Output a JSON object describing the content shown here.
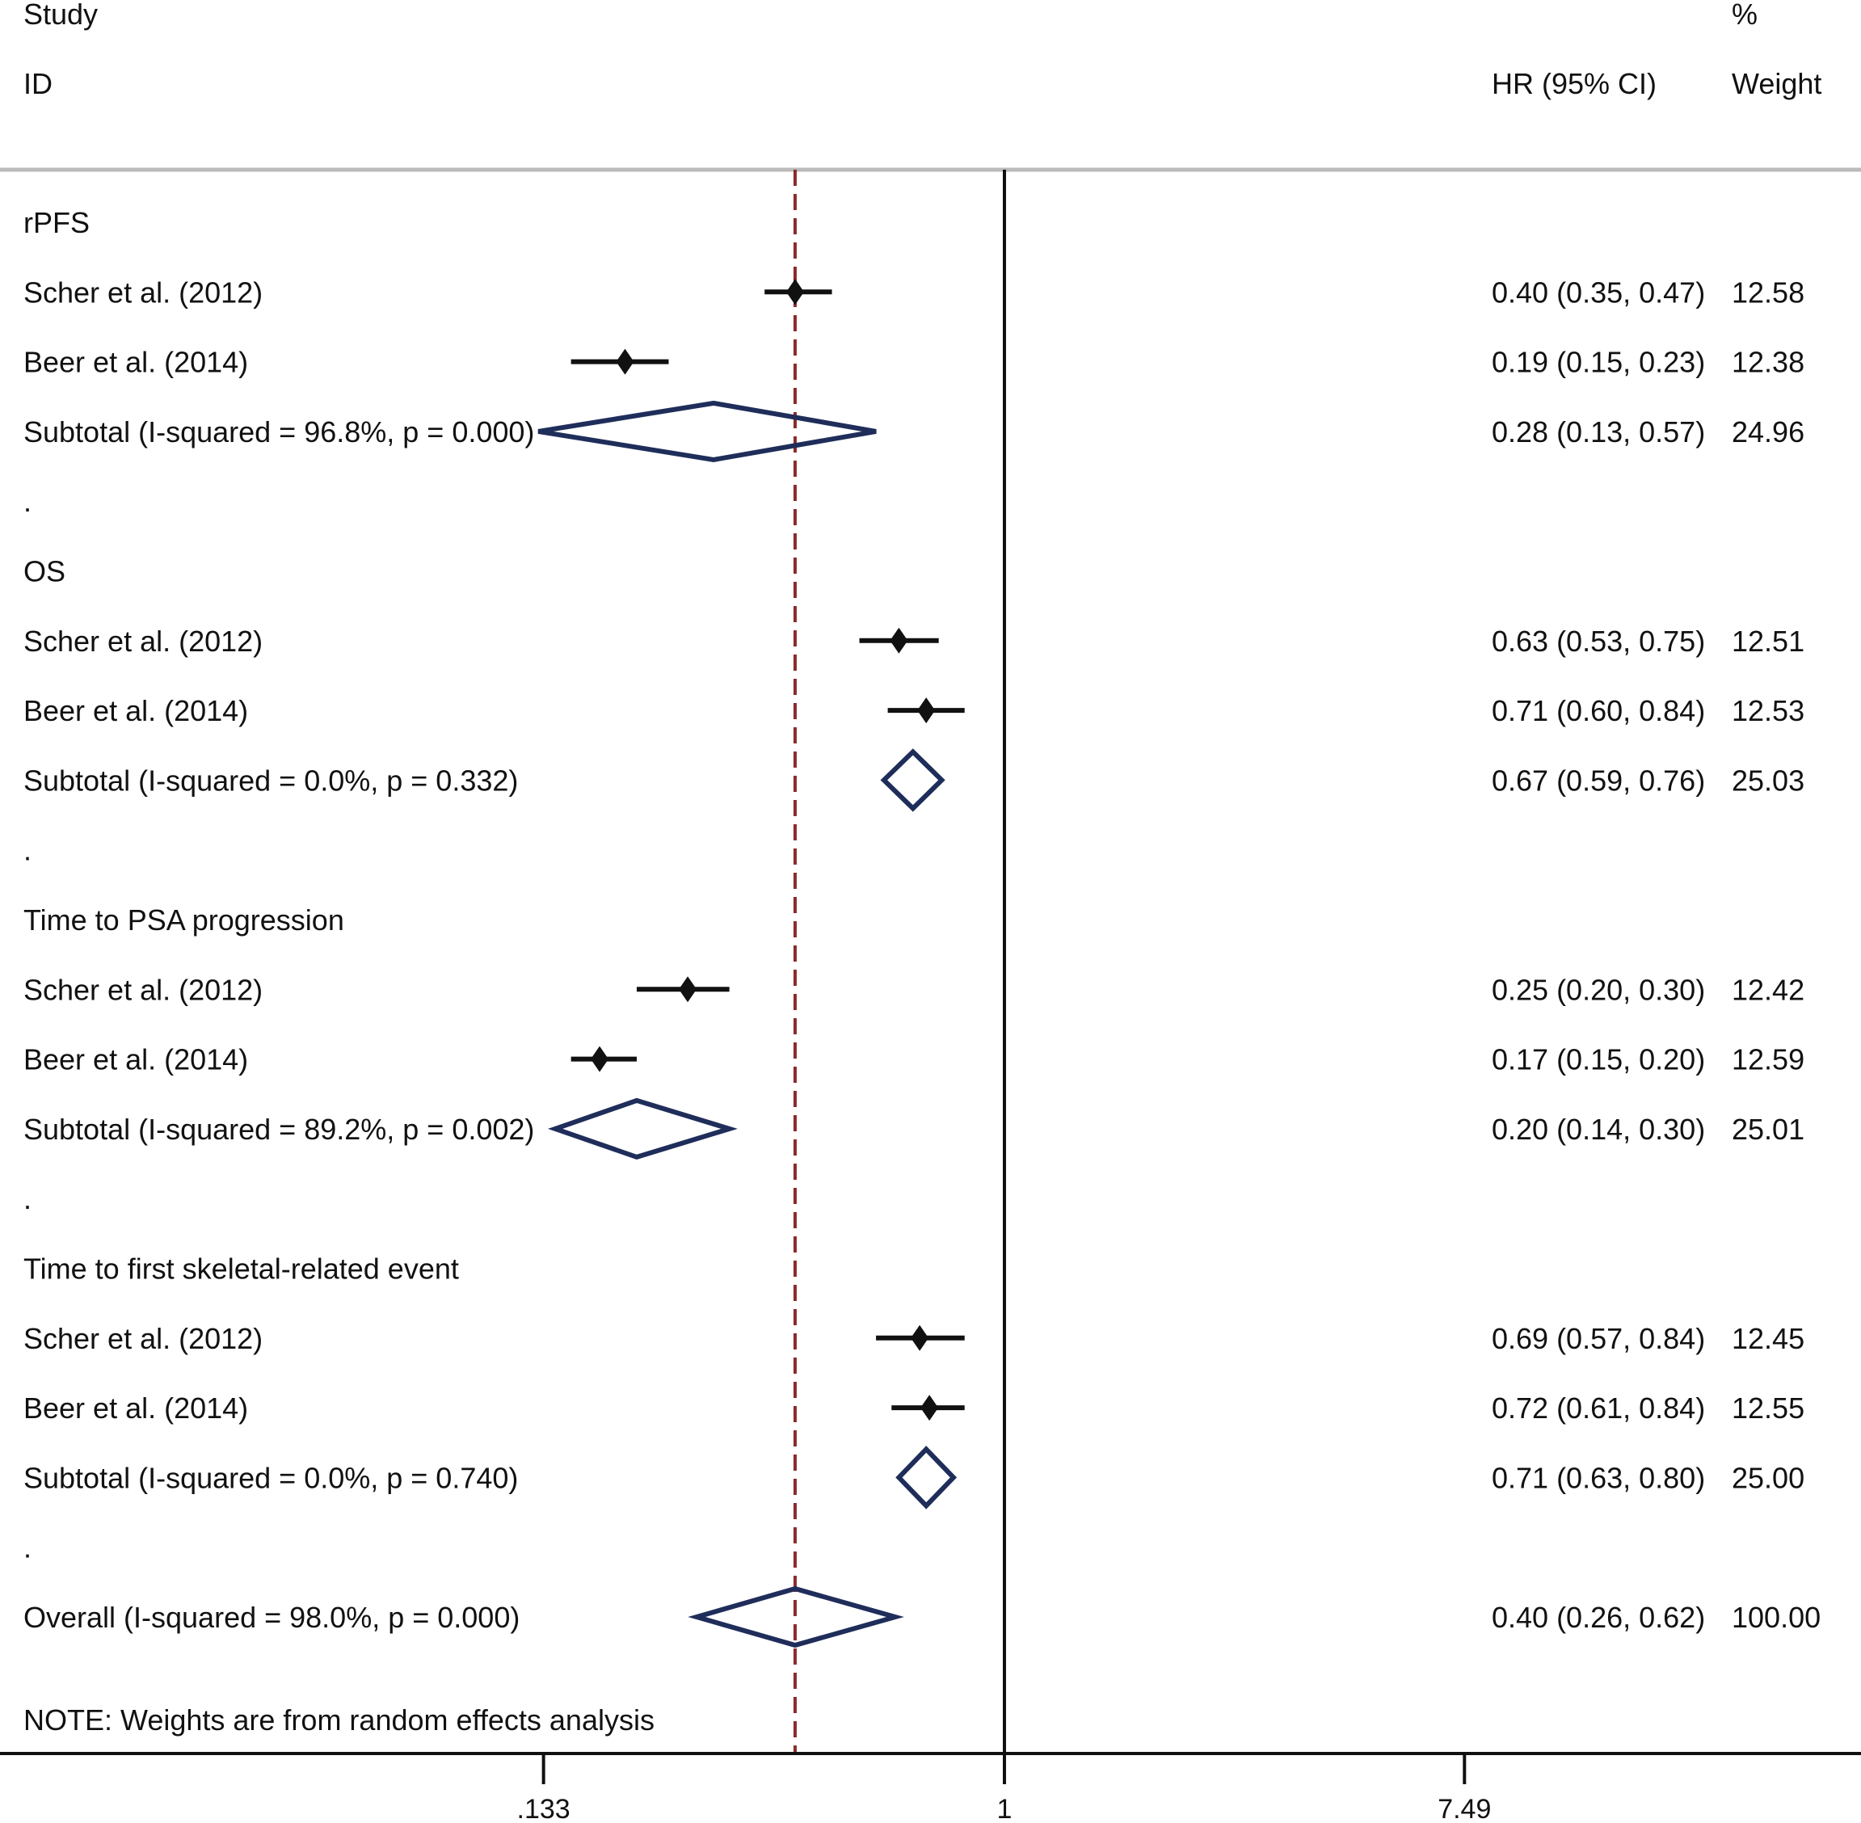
{
  "header": {
    "study": "Study",
    "id": "ID",
    "hr": "HR (95% CI)",
    "pct": "%",
    "weight": "Weight"
  },
  "note": "NOTE: Weights are from random effects analysis",
  "chart_data": {
    "type": "forest",
    "scale": "log",
    "xticks": [
      0.133,
      1,
      7.49
    ],
    "xtick_labels": [
      ".133",
      "1",
      "7.49"
    ],
    "null_line": 1,
    "overall_line": 0.4,
    "colors": {
      "study": "#111111",
      "pooled_diamond": "#1f2d5a",
      "overall_line": "#8b2a2a",
      "axis": "#111111",
      "separator": "#bbbbbb"
    },
    "rows": [
      {
        "kind": "group",
        "label": "rPFS"
      },
      {
        "kind": "study",
        "label": "Scher et al. (2012)",
        "hr": 0.4,
        "lo": 0.35,
        "hi": 0.47,
        "ci_text": "0.40 (0.35, 0.47)",
        "weight": "12.58"
      },
      {
        "kind": "study",
        "label": "Beer et al. (2014)",
        "hr": 0.19,
        "lo": 0.15,
        "hi": 0.23,
        "ci_text": "0.19 (0.15, 0.23)",
        "weight": "12.38"
      },
      {
        "kind": "subtotal",
        "label": "Subtotal  (I-squared = 96.8%, p = 0.000)",
        "hr": 0.28,
        "lo": 0.13,
        "hi": 0.57,
        "ci_text": "0.28 (0.13, 0.57)",
        "weight": "24.96"
      },
      {
        "kind": "spacer",
        "label": "."
      },
      {
        "kind": "group",
        "label": "OS"
      },
      {
        "kind": "study",
        "label": "Scher et al. (2012)",
        "hr": 0.63,
        "lo": 0.53,
        "hi": 0.75,
        "ci_text": "0.63 (0.53, 0.75)",
        "weight": "12.51"
      },
      {
        "kind": "study",
        "label": "Beer et al. (2014)",
        "hr": 0.71,
        "lo": 0.6,
        "hi": 0.84,
        "ci_text": "0.71 (0.60, 0.84)",
        "weight": "12.53"
      },
      {
        "kind": "subtotal",
        "label": "Subtotal  (I-squared = 0.0%, p = 0.332)",
        "hr": 0.67,
        "lo": 0.59,
        "hi": 0.76,
        "ci_text": "0.67 (0.59, 0.76)",
        "weight": "25.03"
      },
      {
        "kind": "spacer",
        "label": "."
      },
      {
        "kind": "group",
        "label": "Time to PSA progression"
      },
      {
        "kind": "study",
        "label": "Scher et al. (2012)",
        "hr": 0.25,
        "lo": 0.2,
        "hi": 0.3,
        "ci_text": "0.25 (0.20, 0.30)",
        "weight": "12.42"
      },
      {
        "kind": "study",
        "label": "Beer et al. (2014)",
        "hr": 0.17,
        "lo": 0.15,
        "hi": 0.2,
        "ci_text": "0.17 (0.15, 0.20)",
        "weight": "12.59"
      },
      {
        "kind": "subtotal",
        "label": "Subtotal  (I-squared = 89.2%, p = 0.002)",
        "hr": 0.2,
        "lo": 0.14,
        "hi": 0.3,
        "ci_text": "0.20 (0.14, 0.30)",
        "weight": "25.01"
      },
      {
        "kind": "spacer",
        "label": "."
      },
      {
        "kind": "group",
        "label": "Time to first skeletal-related event"
      },
      {
        "kind": "study",
        "label": "Scher et al. (2012)",
        "hr": 0.69,
        "lo": 0.57,
        "hi": 0.84,
        "ci_text": "0.69 (0.57, 0.84)",
        "weight": "12.45"
      },
      {
        "kind": "study",
        "label": "Beer et al. (2014)",
        "hr": 0.72,
        "lo": 0.61,
        "hi": 0.84,
        "ci_text": "0.72 (0.61, 0.84)",
        "weight": "12.55"
      },
      {
        "kind": "subtotal",
        "label": "Subtotal  (I-squared = 0.0%, p = 0.740)",
        "hr": 0.71,
        "lo": 0.63,
        "hi": 0.8,
        "ci_text": "0.71 (0.63, 0.80)",
        "weight": "25.00"
      },
      {
        "kind": "spacer",
        "label": "."
      },
      {
        "kind": "overall",
        "label": "Overall  (I-squared = 98.0%, p = 0.000)",
        "hr": 0.4,
        "lo": 0.26,
        "hi": 0.62,
        "ci_text": "0.40 (0.26, 0.62)",
        "weight": "100.00"
      }
    ]
  }
}
